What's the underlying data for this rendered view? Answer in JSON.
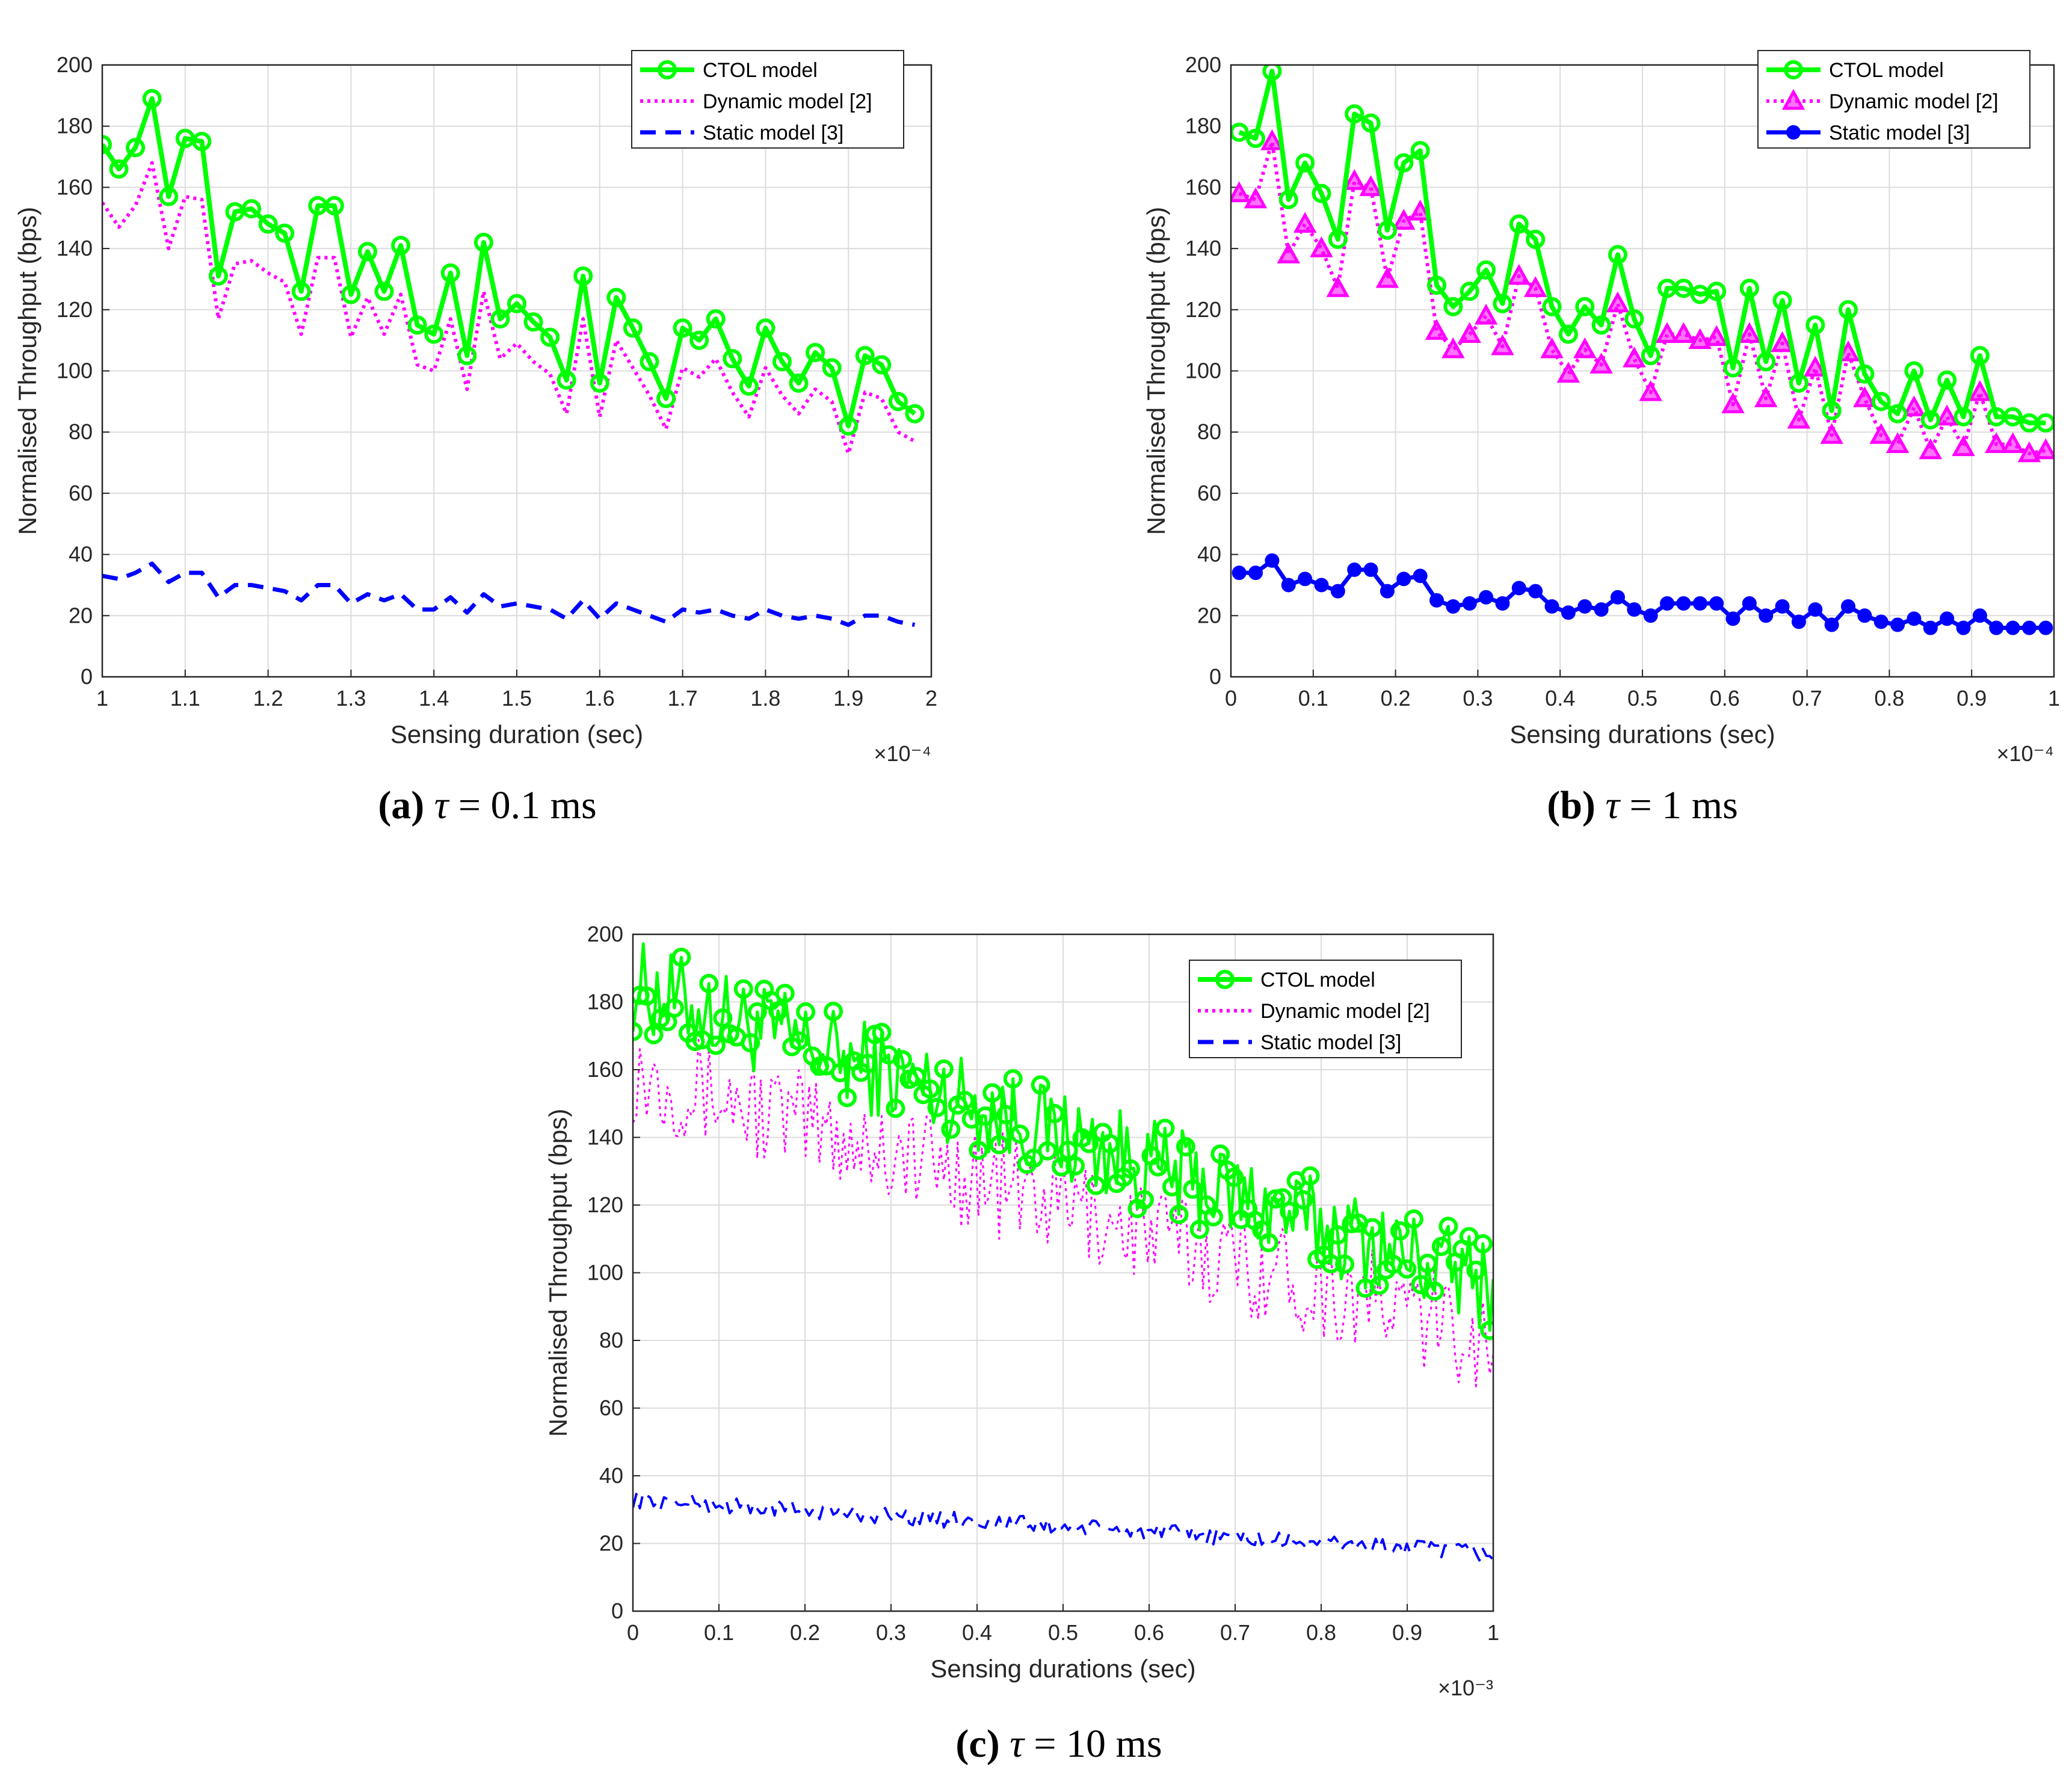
{
  "chart_data": [
    {
      "type": "line",
      "panel": "a",
      "caption": {
        "label": "(a)",
        "symbol": "τ",
        "text": "= 0.1 ms"
      },
      "xlabel": "Sensing duration (sec)",
      "ylabel": "Normalised Throughput (bps)",
      "x_exponent": "×10⁻⁴",
      "xlim": [
        1,
        2
      ],
      "ylim": [
        0,
        200
      ],
      "xticks": [
        1,
        1.1,
        1.2,
        1.3,
        1.4,
        1.5,
        1.6,
        1.7,
        1.8,
        1.9,
        2
      ],
      "xtick_labels": [
        "1",
        "1.1",
        "1.2",
        "1.3",
        "1.4",
        "1.5",
        "1.6",
        "1.7",
        "1.8",
        "1.9",
        "2"
      ],
      "yticks": [
        0,
        20,
        40,
        60,
        80,
        100,
        120,
        140,
        160,
        180,
        200
      ],
      "ytick_labels": [
        "0",
        "20",
        "40",
        "60",
        "80",
        "100",
        "120",
        "140",
        "160",
        "180",
        "200"
      ],
      "grid": true,
      "legend_position": "top-right",
      "x": [
        1.0,
        1.02,
        1.04,
        1.06,
        1.08,
        1.1,
        1.12,
        1.14,
        1.16,
        1.18,
        1.2,
        1.22,
        1.24,
        1.26,
        1.28,
        1.3,
        1.32,
        1.34,
        1.36,
        1.38,
        1.4,
        1.42,
        1.44,
        1.46,
        1.48,
        1.5,
        1.52,
        1.54,
        1.56,
        1.58,
        1.6,
        1.62,
        1.64,
        1.66,
        1.68,
        1.7,
        1.72,
        1.74,
        1.76,
        1.78,
        1.8,
        1.82,
        1.84,
        1.86,
        1.88,
        1.9,
        1.92,
        1.94,
        1.96,
        1.98
      ],
      "series": [
        {
          "name": "CTOL model",
          "style": "green-circle",
          "values": [
            174,
            166,
            173,
            189,
            157,
            176,
            175,
            131,
            152,
            153,
            148,
            145,
            126,
            154,
            154,
            125,
            139,
            126,
            141,
            115,
            112,
            132,
            105,
            142,
            117,
            122,
            116,
            111,
            97,
            131,
            96,
            124,
            114,
            103,
            91,
            114,
            110,
            117,
            104,
            95,
            114,
            103,
            96,
            106,
            101,
            82,
            105,
            102,
            90,
            86
          ]
        },
        {
          "name": "Dynamic model [2]",
          "style": "magenta-dotted",
          "values": [
            155,
            147,
            154,
            168,
            140,
            157,
            156,
            117,
            135,
            136,
            132,
            129,
            112,
            137,
            137,
            111,
            124,
            112,
            125,
            102,
            100,
            117,
            94,
            126,
            104,
            109,
            103,
            99,
            86,
            117,
            85,
            110,
            101,
            92,
            81,
            101,
            98,
            104,
            93,
            85,
            101,
            92,
            86,
            94,
            90,
            73,
            93,
            91,
            80,
            77
          ]
        },
        {
          "name": "Static model [3]",
          "style": "blue-dashed",
          "values": [
            33,
            32,
            34,
            37,
            31,
            34,
            34,
            26,
            30,
            30,
            29,
            28,
            25,
            30,
            30,
            24,
            27,
            25,
            27,
            22,
            22,
            26,
            21,
            27,
            23,
            24,
            23,
            22,
            19,
            25,
            19,
            24,
            22,
            20,
            18,
            22,
            21,
            22,
            20,
            19,
            22,
            20,
            19,
            20,
            19,
            17,
            20,
            20,
            18,
            17
          ]
        }
      ]
    },
    {
      "type": "line",
      "panel": "b",
      "caption": {
        "label": "(b)",
        "symbol": "τ",
        "text": "= 1 ms"
      },
      "xlabel": "Sensing durations (sec)",
      "ylabel": "Normalised Throughput (bps)",
      "x_exponent": "×10⁻⁴",
      "xlim": [
        0,
        1
      ],
      "ylim": [
        0,
        200
      ],
      "xticks": [
        0,
        0.1,
        0.2,
        0.3,
        0.4,
        0.5,
        0.6,
        0.7,
        0.8,
        0.9,
        1
      ],
      "xtick_labels": [
        "0",
        "0.1",
        "0.2",
        "0.3",
        "0.4",
        "0.5",
        "0.6",
        "0.7",
        "0.8",
        "0.9",
        "1"
      ],
      "yticks": [
        0,
        20,
        40,
        60,
        80,
        100,
        120,
        140,
        160,
        180,
        200
      ],
      "ytick_labels": [
        "0",
        "20",
        "40",
        "60",
        "80",
        "100",
        "120",
        "140",
        "160",
        "180",
        "200"
      ],
      "grid": true,
      "legend_position": "top-right",
      "x": [
        0.01,
        0.03,
        0.05,
        0.07,
        0.09,
        0.11,
        0.13,
        0.15,
        0.17,
        0.19,
        0.21,
        0.23,
        0.25,
        0.27,
        0.29,
        0.31,
        0.33,
        0.35,
        0.37,
        0.39,
        0.41,
        0.43,
        0.45,
        0.47,
        0.49,
        0.51,
        0.53,
        0.55,
        0.57,
        0.59,
        0.61,
        0.63,
        0.65,
        0.67,
        0.69,
        0.71,
        0.73,
        0.75,
        0.77,
        0.79,
        0.81,
        0.83,
        0.85,
        0.87,
        0.89,
        0.91,
        0.93,
        0.95,
        0.97,
        0.99
      ],
      "series": [
        {
          "name": "CTOL model",
          "style": "green-circle",
          "values": [
            178,
            176,
            198,
            156,
            168,
            158,
            143,
            184,
            181,
            146,
            168,
            172,
            128,
            121,
            126,
            133,
            122,
            148,
            143,
            121,
            112,
            121,
            115,
            138,
            117,
            105,
            127,
            127,
            125,
            126,
            101,
            127,
            103,
            123,
            96,
            115,
            87,
            120,
            99,
            90,
            86,
            100,
            84,
            97,
            85,
            105,
            85,
            85,
            83,
            83
          ]
        },
        {
          "name": "Dynamic model [2]",
          "style": "magenta-triangle",
          "values": [
            158,
            156,
            175,
            138,
            148,
            140,
            127,
            162,
            160,
            130,
            149,
            152,
            113,
            107,
            112,
            118,
            108,
            131,
            127,
            107,
            99,
            107,
            102,
            122,
            104,
            93,
            112,
            112,
            110,
            111,
            89,
            112,
            91,
            109,
            84,
            101,
            79,
            106,
            91,
            79,
            76,
            88,
            74,
            85,
            75,
            93,
            76,
            76,
            73,
            74
          ]
        },
        {
          "name": "Static model [3]",
          "style": "blue-dot",
          "values": [
            34,
            34,
            38,
            30,
            32,
            30,
            28,
            35,
            35,
            28,
            32,
            33,
            25,
            23,
            24,
            26,
            24,
            29,
            28,
            23,
            21,
            23,
            22,
            26,
            22,
            20,
            24,
            24,
            24,
            24,
            19,
            24,
            20,
            23,
            18,
            22,
            17,
            23,
            20,
            18,
            17,
            19,
            16,
            19,
            16,
            20,
            16,
            16,
            16,
            16
          ]
        }
      ]
    },
    {
      "type": "line",
      "panel": "c",
      "caption": {
        "label": "(c)",
        "symbol": "τ",
        "text": "= 10 ms"
      },
      "xlabel": "Sensing durations (sec)",
      "ylabel": "Normalised Throughput (bps)",
      "x_exponent": "×10⁻³",
      "xlim": [
        0,
        1
      ],
      "ylim": [
        0,
        200
      ],
      "xticks": [
        0,
        0.1,
        0.2,
        0.3,
        0.4,
        0.5,
        0.6,
        0.7,
        0.8,
        0.9,
        1
      ],
      "xtick_labels": [
        "0",
        "0.1",
        "0.2",
        "0.3",
        "0.4",
        "0.5",
        "0.6",
        "0.7",
        "0.8",
        "0.9",
        "1"
      ],
      "yticks": [
        0,
        20,
        40,
        60,
        80,
        100,
        120,
        140,
        160,
        180,
        200
      ],
      "ytick_labels": [
        "0",
        "20",
        "40",
        "60",
        "80",
        "100",
        "120",
        "140",
        "160",
        "180",
        "200"
      ],
      "grid": true,
      "legend_position": "top-right",
      "dense": {
        "x_start": 0.0,
        "x_end": 1.0,
        "points": 250,
        "noise_note": "approximate dense trend"
      },
      "series": [
        {
          "name": "CTOL model",
          "style": "green-circle",
          "trend_start": 185,
          "trend_end": 96,
          "spread": 14
        },
        {
          "name": "Dynamic model [2]",
          "style": "magenta-dotted",
          "trend_start": 160,
          "trend_end": 80,
          "spread": 16
        },
        {
          "name": "Static model [3]",
          "style": "blue-dashed",
          "trend_start": 33,
          "trend_end": 17,
          "spread": 2.5
        }
      ]
    }
  ]
}
